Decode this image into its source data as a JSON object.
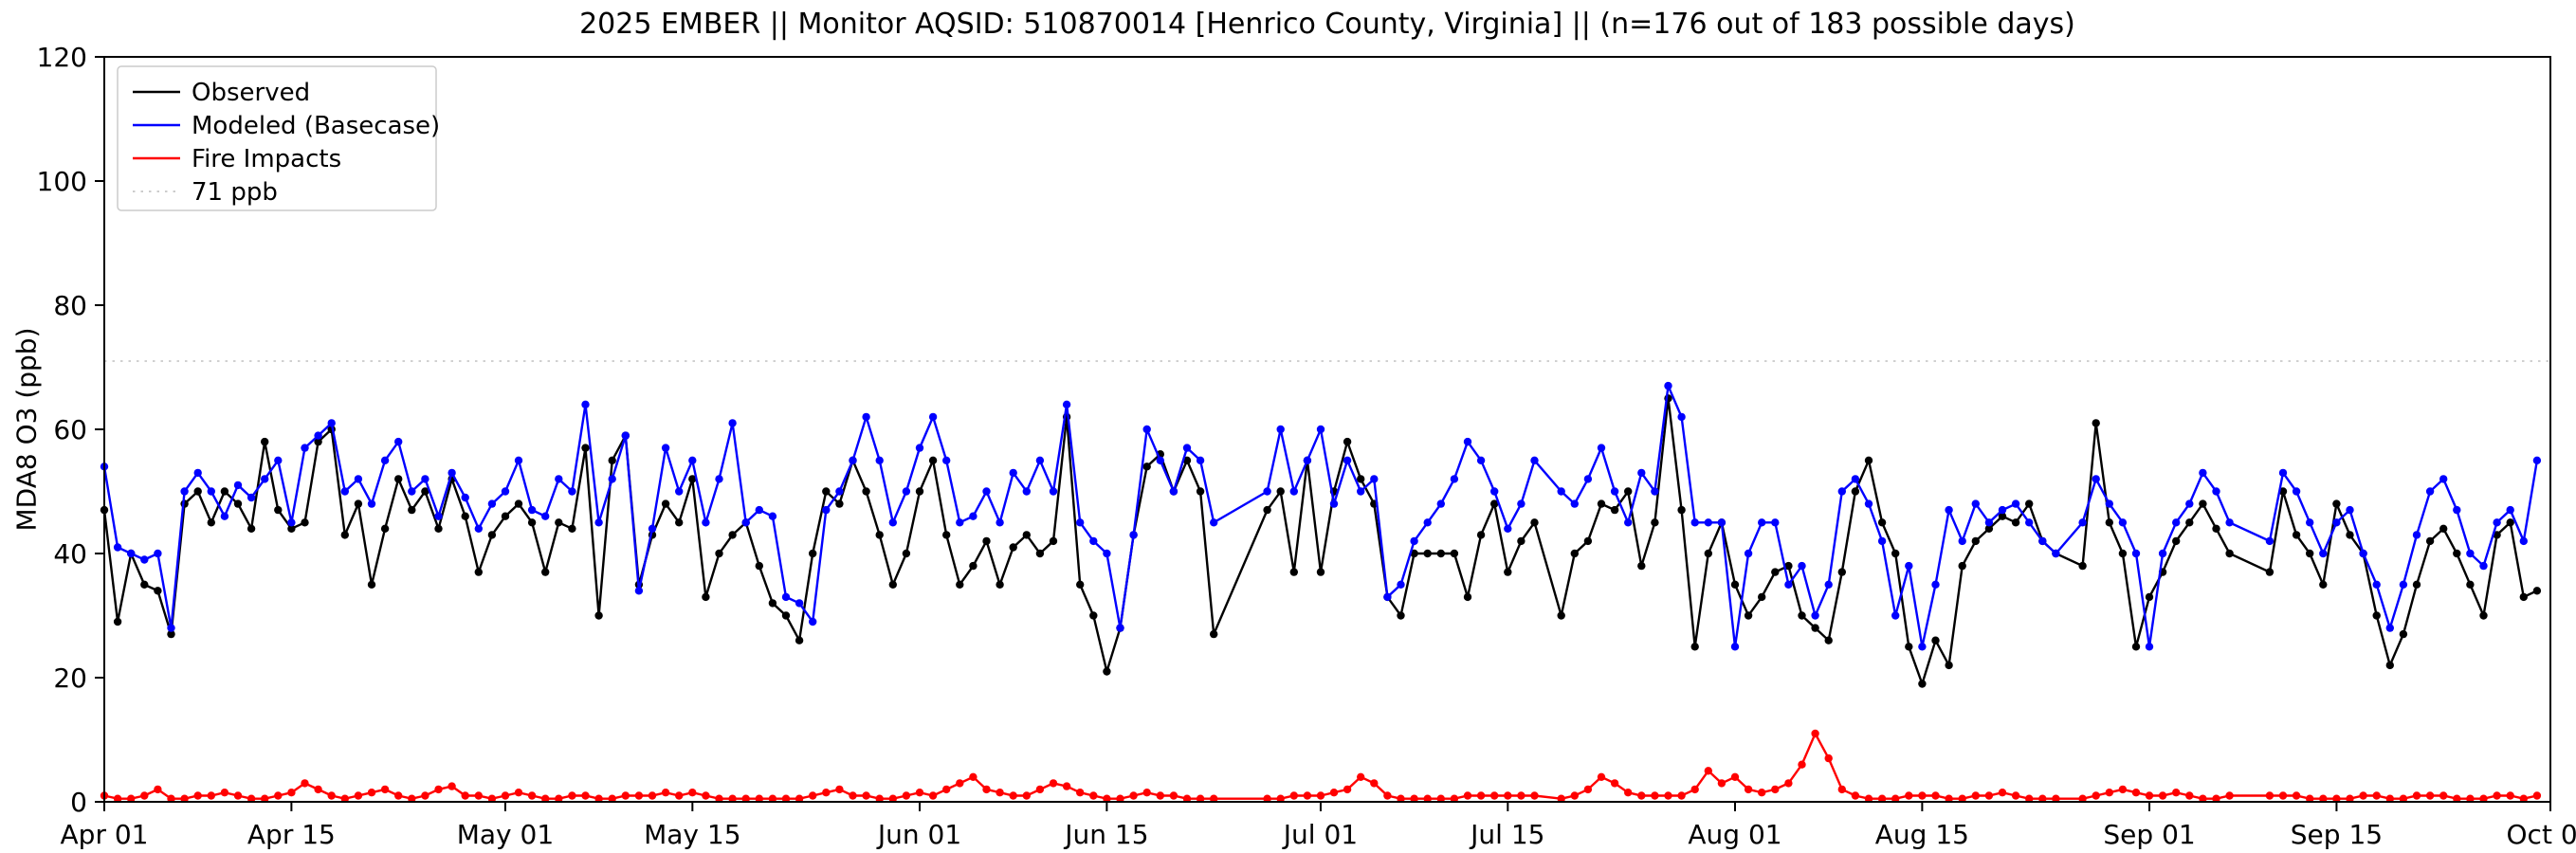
{
  "chart_data": {
    "type": "line",
    "title": "2025 EMBER || Monitor AQSID: 510870014 [Henrico County, Virginia] || (n=176 out of 183 possible days)",
    "xlabel": "",
    "ylabel": "MDA8 O3 (ppb)",
    "ylim": [
      0,
      120
    ],
    "yticks": [
      0,
      20,
      40,
      60,
      80,
      100,
      120
    ],
    "x_total_days": 183,
    "x_range": [
      "Apr 01",
      "Oct 01"
    ],
    "grid": false,
    "legend_position": "upper left",
    "threshold": {
      "value": 71,
      "label": "71 ppb",
      "color": "#d0d0d0",
      "style": "dotted"
    },
    "xticks": [
      {
        "day": 0,
        "label": "Apr 01"
      },
      {
        "day": 14,
        "label": "Apr 15"
      },
      {
        "day": 30,
        "label": "May 01"
      },
      {
        "day": 44,
        "label": "May 15"
      },
      {
        "day": 61,
        "label": "Jun 01"
      },
      {
        "day": 75,
        "label": "Jun 15"
      },
      {
        "day": 91,
        "label": "Jul 01"
      },
      {
        "day": 105,
        "label": "Jul 15"
      },
      {
        "day": 122,
        "label": "Aug 01"
      },
      {
        "day": 136,
        "label": "Aug 15"
      },
      {
        "day": 153,
        "label": "Sep 01"
      },
      {
        "day": 167,
        "label": "Sep 15"
      },
      {
        "day": 183,
        "label": "Oct 01"
      }
    ],
    "legend": [
      {
        "label": "Observed",
        "color": "#000000",
        "dotted": false
      },
      {
        "label": "Modeled (Basecase)",
        "color": "#0000ff",
        "dotted": false
      },
      {
        "label": "Fire Impacts",
        "color": "#ff0000",
        "dotted": false
      },
      {
        "label": "71 ppb",
        "color": "#cccccc",
        "dotted": true
      }
    ],
    "series": [
      {
        "id": "observed",
        "name": "Observed",
        "color": "#000000",
        "values": [
          47,
          29,
          40,
          35,
          34,
          27,
          48,
          50,
          45,
          50,
          48,
          44,
          58,
          47,
          44,
          45,
          58,
          60,
          43,
          48,
          35,
          44,
          52,
          47,
          50,
          44,
          52,
          46,
          37,
          43,
          46,
          48,
          45,
          37,
          45,
          44,
          57,
          30,
          55,
          59,
          35,
          43,
          48,
          45,
          52,
          33,
          40,
          43,
          45,
          38,
          32,
          30,
          26,
          40,
          50,
          48,
          55,
          50,
          43,
          35,
          40,
          50,
          55,
          43,
          35,
          38,
          42,
          35,
          41,
          43,
          40,
          42,
          62,
          35,
          30,
          21,
          28,
          43,
          54,
          56,
          50,
          55,
          50,
          27,
          null,
          null,
          null,
          47,
          50,
          37,
          55,
          37,
          50,
          58,
          52,
          48,
          33,
          30,
          40,
          40,
          40,
          40,
          33,
          43,
          48,
          37,
          42,
          45,
          null,
          30,
          40,
          42,
          48,
          47,
          50,
          38,
          45,
          65,
          47,
          25,
          40,
          45,
          35,
          30,
          33,
          37,
          38,
          30,
          28,
          26,
          37,
          50,
          55,
          45,
          40,
          25,
          19,
          26,
          22,
          38,
          42,
          44,
          46,
          45,
          48,
          42,
          40,
          null,
          38,
          61,
          45,
          40,
          25,
          33,
          37,
          42,
          45,
          48,
          44,
          40,
          null,
          null,
          37,
          50,
          43,
          40,
          35,
          48,
          43,
          40,
          30,
          22,
          27,
          35,
          42,
          44,
          40,
          35,
          30,
          43,
          45,
          33,
          34
        ]
      },
      {
        "id": "modeled",
        "name": "Modeled (Basecase)",
        "color": "#0000ff",
        "values": [
          54,
          41,
          40,
          39,
          40,
          28,
          50,
          53,
          50,
          46,
          51,
          49,
          52,
          55,
          45,
          57,
          59,
          61,
          50,
          52,
          48,
          55,
          58,
          50,
          52,
          46,
          53,
          49,
          44,
          48,
          50,
          55,
          47,
          46,
          52,
          50,
          64,
          45,
          52,
          59,
          34,
          44,
          57,
          50,
          55,
          45,
          52,
          61,
          45,
          47,
          46,
          33,
          32,
          29,
          47,
          50,
          55,
          62,
          55,
          45,
          50,
          57,
          62,
          55,
          45,
          46,
          50,
          45,
          53,
          50,
          55,
          50,
          64,
          45,
          42,
          40,
          28,
          43,
          60,
          55,
          50,
          57,
          55,
          45,
          null,
          null,
          null,
          50,
          60,
          50,
          55,
          60,
          48,
          55,
          50,
          52,
          33,
          35,
          42,
          45,
          48,
          52,
          58,
          55,
          50,
          44,
          48,
          55,
          null,
          50,
          48,
          52,
          57,
          50,
          45,
          53,
          50,
          67,
          62,
          45,
          45,
          45,
          25,
          40,
          45,
          45,
          35,
          38,
          30,
          35,
          50,
          52,
          48,
          42,
          30,
          38,
          25,
          35,
          47,
          42,
          48,
          45,
          47,
          48,
          45,
          42,
          40,
          null,
          45,
          52,
          48,
          45,
          40,
          25,
          40,
          45,
          48,
          53,
          50,
          45,
          null,
          null,
          42,
          53,
          50,
          45,
          40,
          45,
          47,
          40,
          35,
          28,
          35,
          43,
          50,
          52,
          47,
          40,
          38,
          45,
          47,
          42,
          55
        ]
      },
      {
        "id": "fire",
        "name": "Fire Impacts",
        "color": "#ff0000",
        "values": [
          1,
          0.5,
          0.5,
          1,
          2,
          0.5,
          0.5,
          1,
          1,
          1.5,
          1,
          0.5,
          0.5,
          1,
          1.5,
          3,
          2,
          1,
          0.5,
          1,
          1.5,
          2,
          1,
          0.5,
          1,
          2,
          2.5,
          1,
          1,
          0.5,
          1,
          1.5,
          1,
          0.5,
          0.5,
          1,
          1,
          0.5,
          0.5,
          1,
          1,
          1,
          1.5,
          1,
          1.5,
          1,
          0.5,
          0.5,
          0.5,
          0.5,
          0.5,
          0.5,
          0.5,
          1,
          1.5,
          2,
          1,
          1,
          0.5,
          0.5,
          1,
          1.5,
          1,
          2,
          3,
          4,
          2,
          1.5,
          1,
          1,
          2,
          3,
          2.5,
          1.5,
          1,
          0.5,
          0.5,
          1,
          1.5,
          1,
          1,
          0.5,
          0.5,
          0.5,
          null,
          null,
          null,
          0.5,
          0.5,
          1,
          1,
          1,
          1.5,
          2,
          4,
          3,
          1,
          0.5,
          0.5,
          0.5,
          0.5,
          0.5,
          1,
          1,
          1,
          1,
          1,
          1,
          null,
          0.5,
          1,
          2,
          4,
          3,
          1.5,
          1,
          1,
          1,
          1,
          2,
          5,
          3,
          4,
          2,
          1.5,
          2,
          3,
          6,
          11,
          7,
          2,
          1,
          0.5,
          0.5,
          0.5,
          1,
          1,
          1,
          0.5,
          0.5,
          1,
          1,
          1.5,
          1,
          0.5,
          0.5,
          0.5,
          null,
          0.5,
          1,
          1.5,
          2,
          1.5,
          1,
          1,
          1.5,
          1,
          0.5,
          0.5,
          1,
          null,
          null,
          1,
          1,
          1,
          0.5,
          0.5,
          0.5,
          0.5,
          1,
          1,
          0.5,
          0.5,
          1,
          1,
          1,
          0.5,
          0.5,
          0.5,
          1,
          1,
          0.5,
          1
        ]
      }
    ]
  }
}
